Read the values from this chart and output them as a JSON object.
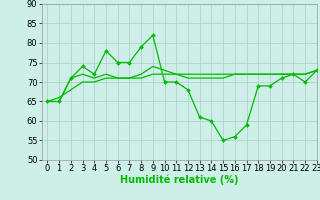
{
  "xlabel": "Humidité relative (%)",
  "xlim": [
    -0.5,
    23
  ],
  "ylim": [
    50,
    90
  ],
  "yticks": [
    50,
    55,
    60,
    65,
    70,
    75,
    80,
    85,
    90
  ],
  "xticks": [
    0,
    1,
    2,
    3,
    4,
    5,
    6,
    7,
    8,
    9,
    10,
    11,
    12,
    13,
    14,
    15,
    16,
    17,
    18,
    19,
    20,
    21,
    22,
    23
  ],
  "background_color": "#ceeee8",
  "grid_color": "#aacccc",
  "line_color": "#00bb00",
  "line1_x": [
    0,
    1,
    2,
    3,
    4,
    5,
    6,
    7,
    8,
    9,
    10,
    11,
    12,
    13,
    14,
    15,
    16,
    17,
    18,
    19,
    20,
    21,
    22,
    23
  ],
  "line1_y": [
    65,
    65,
    71,
    74,
    72,
    78,
    75,
    75,
    79,
    82,
    70,
    70,
    68,
    61,
    60,
    55,
    56,
    59,
    69,
    69,
    71,
    72,
    70,
    73
  ],
  "line2_x": [
    0,
    1,
    2,
    3,
    4,
    5,
    6,
    7,
    8,
    9,
    10,
    11,
    12,
    13,
    14,
    15,
    16,
    17,
    18,
    19,
    20,
    21,
    22,
    23
  ],
  "line2_y": [
    65,
    65,
    71,
    72,
    71,
    72,
    71,
    71,
    72,
    74,
    73,
    72,
    71,
    71,
    71,
    71,
    72,
    72,
    72,
    72,
    72,
    72,
    72,
    73
  ],
  "line3_x": [
    0,
    1,
    2,
    3,
    4,
    5,
    6,
    7,
    8,
    9,
    10,
    11,
    12,
    13,
    14,
    15,
    16,
    17,
    18,
    19,
    20,
    21,
    22,
    23
  ],
  "line3_y": [
    65,
    66,
    68,
    70,
    70,
    71,
    71,
    71,
    71,
    72,
    72,
    72,
    72,
    72,
    72,
    72,
    72,
    72,
    72,
    72,
    72,
    72,
    72,
    73
  ],
  "xlabel_fontsize": 7,
  "tick_fontsize": 6
}
